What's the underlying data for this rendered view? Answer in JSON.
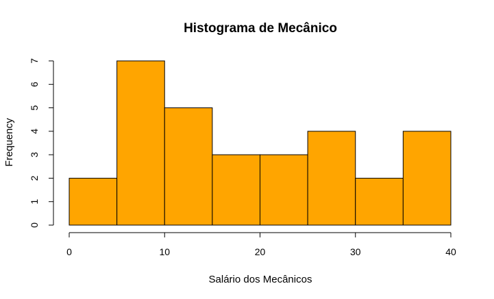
{
  "chart_data": {
    "type": "bar",
    "title": "Histograma de Mecânico",
    "xlabel": "Salário dos Mecânicos",
    "ylabel": "Frequency",
    "bins": [
      {
        "from": 0,
        "to": 5,
        "count": 2
      },
      {
        "from": 5,
        "to": 10,
        "count": 7
      },
      {
        "from": 10,
        "to": 15,
        "count": 5
      },
      {
        "from": 15,
        "to": 20,
        "count": 3
      },
      {
        "from": 20,
        "to": 25,
        "count": 3
      },
      {
        "from": 25,
        "to": 30,
        "count": 4
      },
      {
        "from": 30,
        "to": 35,
        "count": 2
      },
      {
        "from": 35,
        "to": 40,
        "count": 4
      }
    ],
    "xlim": [
      0,
      40
    ],
    "ylim": [
      0,
      7
    ],
    "x_ticks": [
      0,
      10,
      20,
      30,
      40
    ],
    "y_ticks": [
      0,
      1,
      2,
      3,
      4,
      5,
      6,
      7
    ],
    "bar_color": "#FFA500",
    "grid": false
  }
}
